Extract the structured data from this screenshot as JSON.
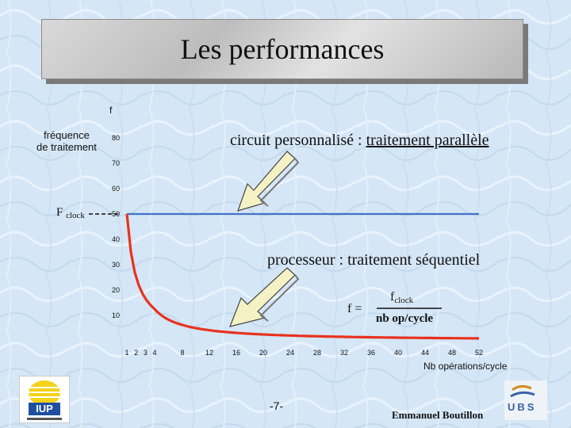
{
  "slide": {
    "title": "Les performances",
    "page_number": "-7-",
    "author": "Emmanuel Boutillon",
    "logo_left_text": "IUP",
    "logo_right_text": "UBS"
  },
  "chart_data": {
    "type": "line",
    "y_axis_symbol": "f",
    "ylabel": "fréquence\nde traitement",
    "xlabel": "Nb opérations/cycle",
    "x_ticks": [
      "1",
      "2",
      "3",
      "4",
      "8",
      "12",
      "16",
      "20",
      "24",
      "28",
      "32",
      "36",
      "40",
      "44",
      "48",
      "52"
    ],
    "y_ticks": [
      "80",
      "70",
      "60",
      "50",
      "40",
      "30",
      "20",
      "10"
    ],
    "fclock_label": "F",
    "fclock_sub": "clock",
    "series": [
      {
        "name": "circuit personnalisé : traitement parallèle",
        "color": "#4472c4",
        "x": [
          1,
          52
        ],
        "y": [
          50,
          50
        ]
      },
      {
        "name": "processeur : traitement séquentiel",
        "color": "#e8321e",
        "x": [
          1,
          2,
          3,
          4,
          8,
          12,
          16,
          20,
          24,
          28,
          32,
          36,
          40,
          44,
          48,
          52
        ],
        "y": [
          50,
          25,
          16.7,
          12.5,
          6.3,
          4.2,
          3.1,
          2.5,
          2.1,
          1.8,
          1.6,
          1.4,
          1.3,
          1.1,
          1.0,
          1.0
        ]
      }
    ],
    "annotations": {
      "parallel_prefix": "circuit personnalisé  : ",
      "parallel_underlined": "traitement parallèle",
      "sequential": "processeur  : traitement séquentiel",
      "formula_lhs": "f =",
      "formula_num": "f",
      "formula_num_sub": "clock",
      "formula_den": "nb op/cycle"
    }
  }
}
